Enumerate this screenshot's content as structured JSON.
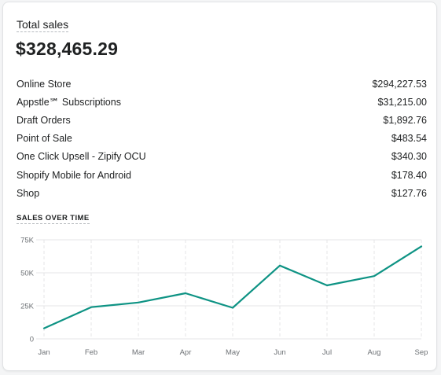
{
  "card": {
    "title": "Total sales",
    "total": "$328,465.29"
  },
  "breakdown": [
    {
      "label": "Online Store",
      "value": "$294,227.53"
    },
    {
      "label": "Appstle℠ Subscriptions",
      "value": "$31,215.00"
    },
    {
      "label": "Draft Orders",
      "value": "$1,892.76"
    },
    {
      "label": "Point of Sale",
      "value": "$483.54"
    },
    {
      "label": "One Click Upsell - Zipify OCU",
      "value": "$340.30"
    },
    {
      "label": "Shopify Mobile for Android",
      "value": "$178.40"
    },
    {
      "label": "Shop",
      "value": "$127.76"
    }
  ],
  "chart_section": {
    "heading": "SALES OVER TIME"
  },
  "chart_data": {
    "type": "line",
    "title": "SALES OVER TIME",
    "categories": [
      "Jan",
      "Feb",
      "Mar",
      "Apr",
      "May",
      "Jun",
      "Jul",
      "Aug",
      "Sep"
    ],
    "series": [
      {
        "values": [
          8000,
          24000,
          27500,
          34500,
          23500,
          55500,
          40500,
          47500,
          70000
        ],
        "color": "#0e9384"
      }
    ],
    "y_ticks": [
      0,
      25000,
      50000,
      75000
    ],
    "y_tick_labels": [
      "0",
      "25K",
      "50K",
      "75K"
    ],
    "ylim": [
      0,
      75000
    ],
    "grid": true,
    "gridline_color": "#e4e5e7",
    "vertical_grid_style": "dashed"
  }
}
